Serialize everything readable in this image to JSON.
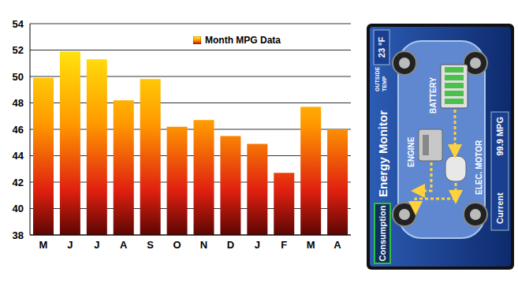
{
  "chart_data": {
    "type": "bar",
    "categories": [
      "M",
      "J",
      "J",
      "A",
      "S",
      "O",
      "N",
      "D",
      "J",
      "F",
      "M",
      "A"
    ],
    "series": [
      {
        "name": "Month MPG Data",
        "color": "#ff9900",
        "values": [
          49.9,
          51.9,
          51.3,
          48.2,
          49.8,
          46.2,
          46.7,
          45.5,
          44.9,
          42.7,
          47.7,
          46.0
        ]
      }
    ],
    "ylim": [
      38,
      54
    ],
    "yticks": [
      38,
      40,
      42,
      44,
      46,
      48,
      50,
      52,
      54
    ],
    "grid": true,
    "legend": "upper right"
  },
  "panel": {
    "title": "Energy Monitor",
    "button": "Consumption",
    "outside_temp": {
      "label": [
        "OUTSIDE",
        "TEMP"
      ],
      "value": "23 °F"
    },
    "components": {
      "engine": "ENGINE",
      "battery": "BATTERY",
      "motor": "ELEC. MOTOR"
    },
    "current": {
      "label": "Current",
      "value": "99.9 MPG"
    }
  }
}
